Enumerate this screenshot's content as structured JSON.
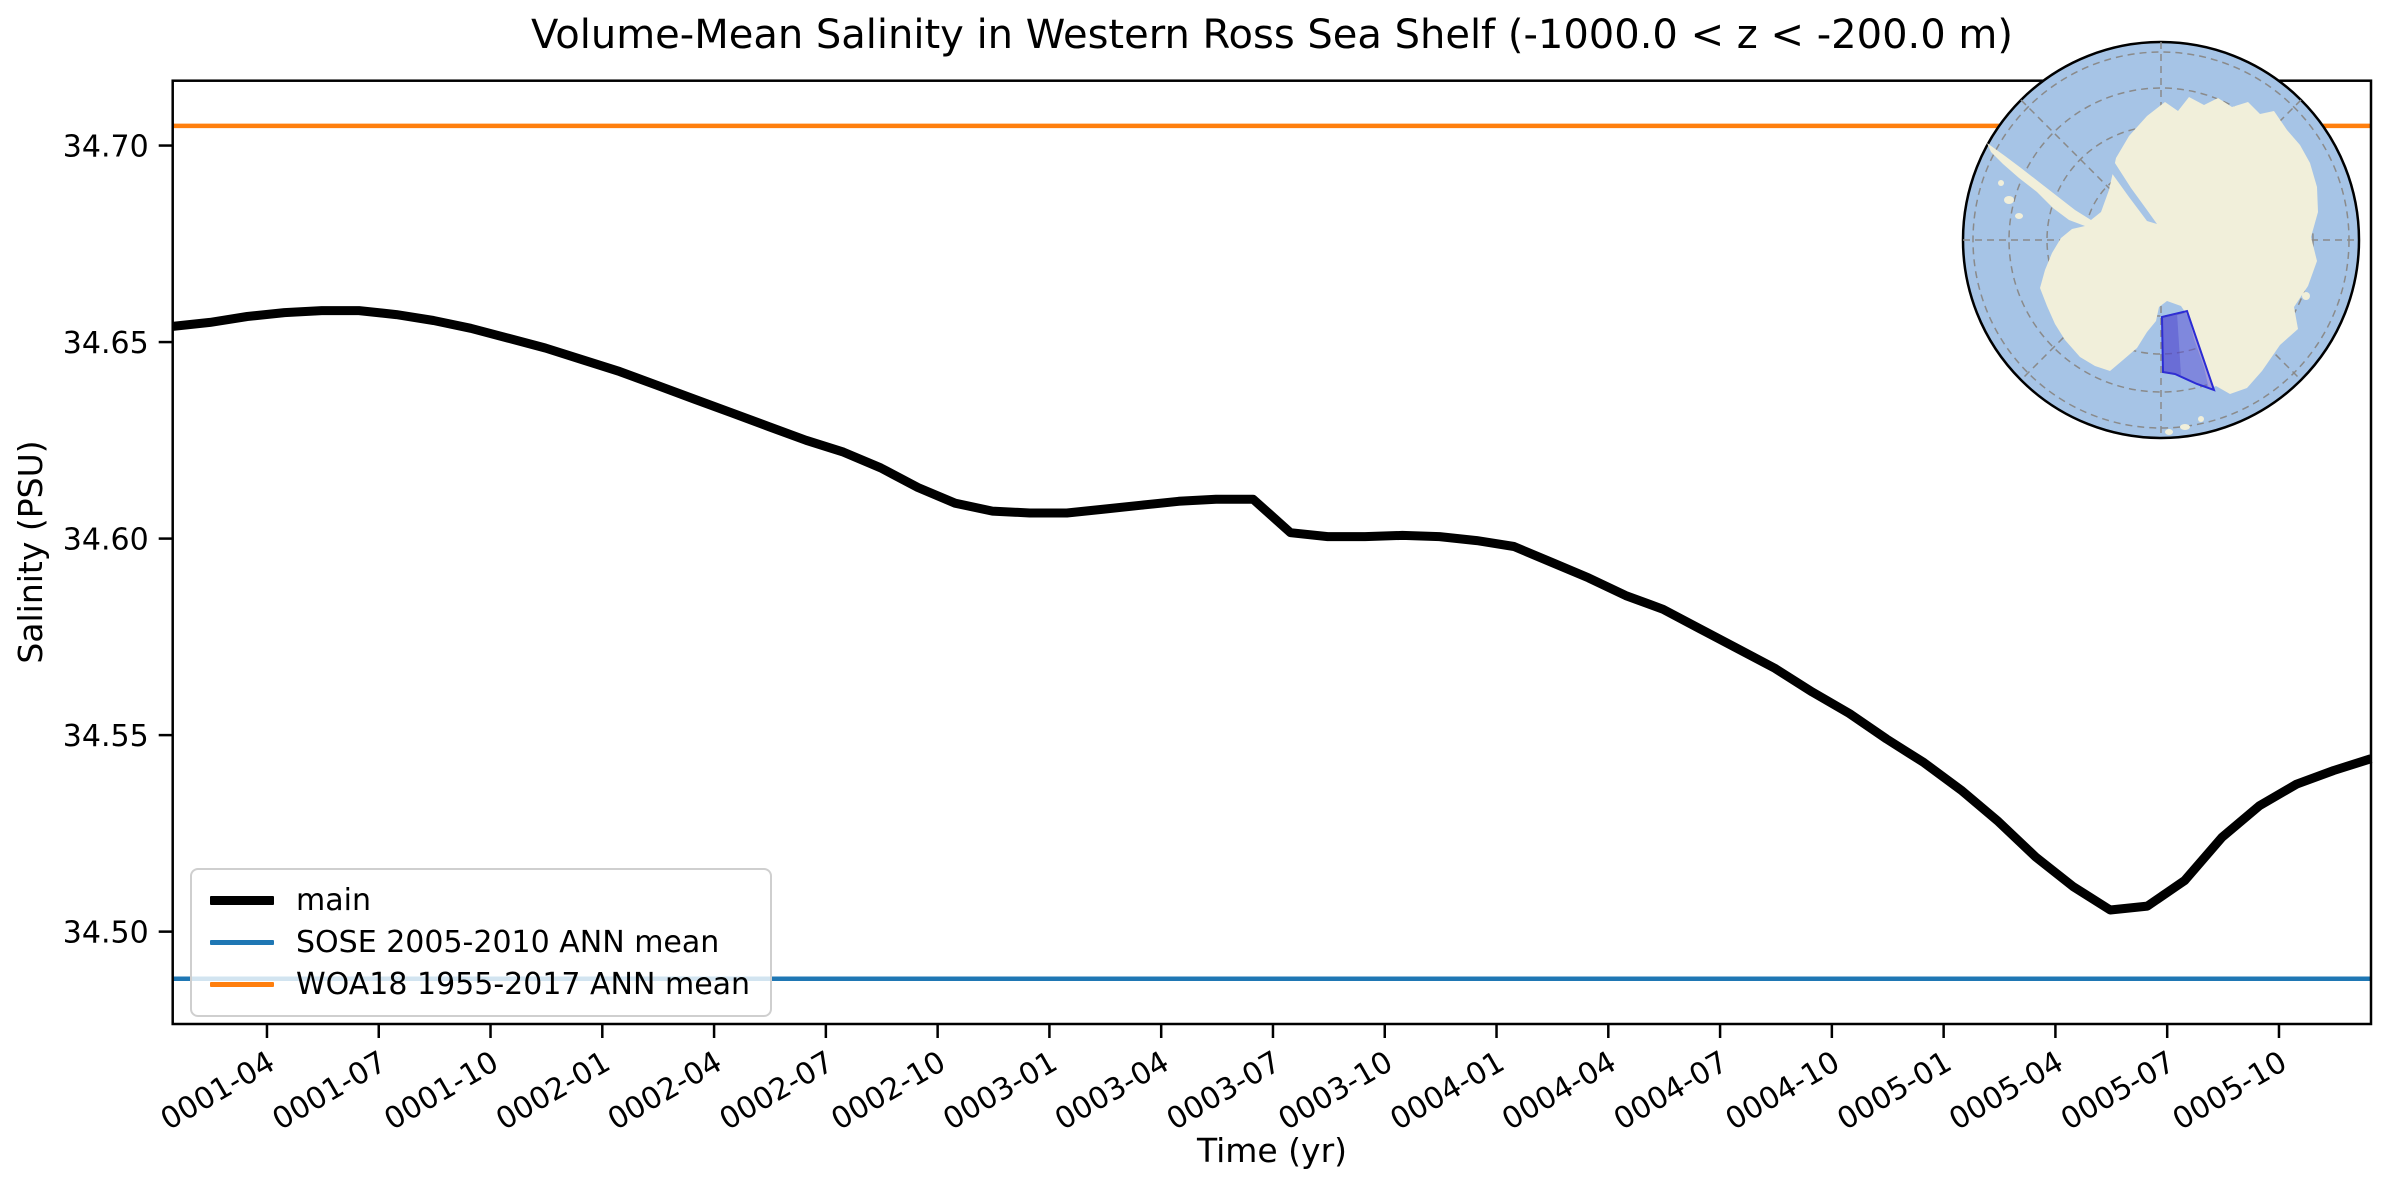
{
  "title": "Volume-Mean Salinity in Western Ross Sea Shelf (-1000.0 < z < -200.0 m)",
  "chart_data": {
    "type": "line",
    "title": "Volume-Mean Salinity in Western Ross Sea Shelf (-1000.0 < z < -200.0 m)",
    "xlabel": "Time (yr)",
    "ylabel": "Salinity (PSU)",
    "ylim": [
      34.4765,
      34.7165
    ],
    "grid": false,
    "legend_position": "lower left",
    "x": [
      "0001-01",
      "0001-02",
      "0001-03",
      "0001-04",
      "0001-05",
      "0001-06",
      "0001-07",
      "0001-08",
      "0001-09",
      "0001-10",
      "0001-11",
      "0001-12",
      "0002-01",
      "0002-02",
      "0002-03",
      "0002-04",
      "0002-05",
      "0002-06",
      "0002-07",
      "0002-08",
      "0002-09",
      "0002-10",
      "0002-11",
      "0002-12",
      "0003-01",
      "0003-02",
      "0003-03",
      "0003-04",
      "0003-05",
      "0003-06",
      "0003-07",
      "0003-08",
      "0003-09",
      "0003-10",
      "0003-11",
      "0003-12",
      "0004-01",
      "0004-02",
      "0004-03",
      "0004-04",
      "0004-05",
      "0004-06",
      "0004-07",
      "0004-08",
      "0004-09",
      "0004-10",
      "0004-11",
      "0004-12",
      "0005-01",
      "0005-02",
      "0005-03",
      "0005-04",
      "0005-05",
      "0005-06",
      "0005-07",
      "0005-08",
      "0005-09",
      "0005-10",
      "0005-11",
      "0005-12"
    ],
    "x_tick_labels": [
      "0001-04",
      "0001-07",
      "0001-10",
      "0002-01",
      "0002-04",
      "0002-07",
      "0002-10",
      "0003-01",
      "0003-04",
      "0003-07",
      "0003-10",
      "0004-01",
      "0004-04",
      "0004-07",
      "0004-10",
      "0005-01",
      "0005-04",
      "0005-07",
      "0005-10"
    ],
    "y_tick_values": [
      34.5,
      34.55,
      34.6,
      34.65,
      34.7
    ],
    "y_tick_labels": [
      "34.50",
      "34.55",
      "34.60",
      "34.65",
      "34.70"
    ],
    "series": [
      {
        "name": "main",
        "color": "#000000",
        "line_width": 9,
        "values": [
          34.654,
          34.655,
          34.6565,
          34.6575,
          34.658,
          34.658,
          34.657,
          34.6555,
          34.6535,
          34.651,
          34.6485,
          34.6455,
          34.6425,
          34.639,
          34.6355,
          34.632,
          34.6285,
          34.625,
          34.622,
          34.618,
          34.613,
          34.609,
          34.607,
          34.6065,
          34.6065,
          34.6075,
          34.6085,
          34.6095,
          34.61,
          34.61,
          34.6015,
          34.6005,
          34.6005,
          34.6008,
          34.6005,
          34.5995,
          34.598,
          34.594,
          34.59,
          34.5855,
          34.582,
          34.577,
          34.572,
          34.567,
          34.561,
          34.5555,
          34.549,
          34.543,
          34.536,
          34.528,
          34.519,
          34.5115,
          34.5055,
          34.5065,
          34.513,
          34.524,
          34.532,
          34.5375,
          34.541,
          34.544
        ]
      },
      {
        "name": "SOSE 2005-2010 ANN mean",
        "color": "#1f77b4",
        "line_width": 4.5,
        "type": "hline",
        "value": 34.488
      },
      {
        "name": "WOA18 1955-2017 ANN mean",
        "color": "#ff7f0e",
        "line_width": 4.5,
        "type": "hline",
        "value": 34.705
      }
    ]
  },
  "inset_map": {
    "description": "South polar stereographic map of Antarctica with Western Ross Sea Shelf region highlighted",
    "ocean_color": "#a6c4e6",
    "land_color": "#f1efda",
    "graticule_color": "#8a8a8a",
    "region_fill": "rgba(88,76,212,0.5)",
    "region_stroke": "#2b2bd5",
    "outline_color": "#000000"
  }
}
